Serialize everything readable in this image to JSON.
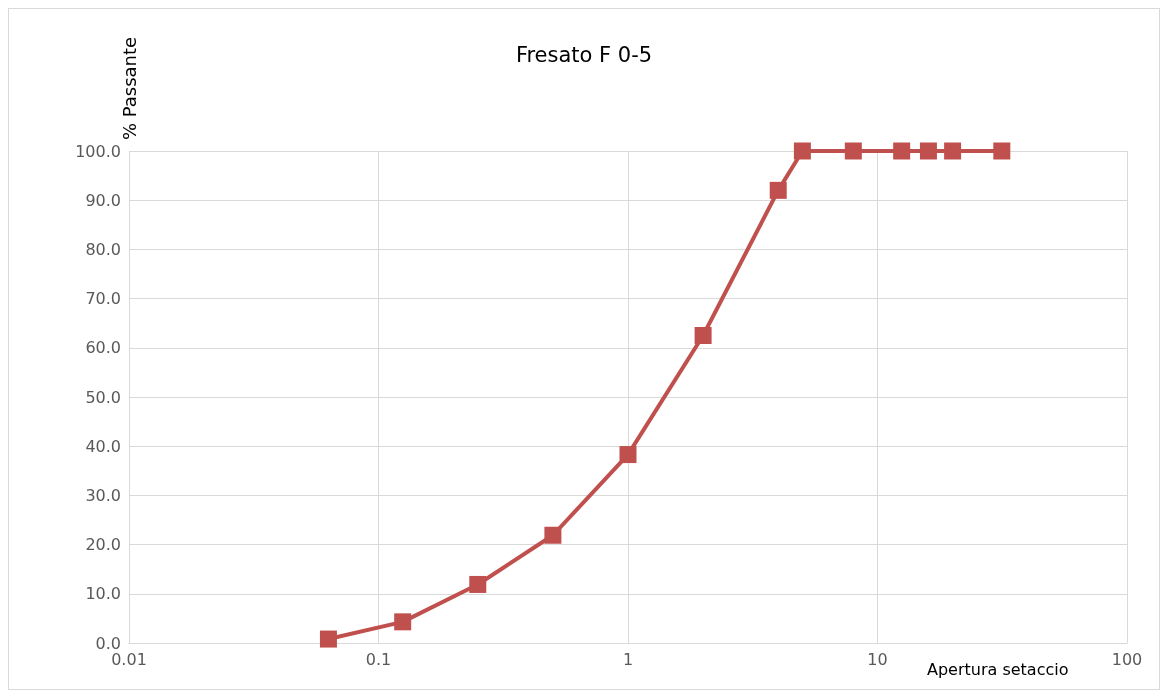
{
  "chart_data": {
    "type": "line",
    "title": "Fresato F 0-5",
    "xlabel": "Apertura setaccio",
    "ylabel": "% Passante",
    "x": [
      0.063,
      0.125,
      0.25,
      0.5,
      1,
      2,
      4,
      5,
      8,
      12.5,
      16,
      20,
      31.5
    ],
    "series": [
      {
        "color": "#c0504d",
        "values": [
          0.8,
          4.3,
          11.9,
          21.9,
          38.3,
          62.5,
          92.0,
          100,
          100,
          100,
          100,
          100,
          100
        ]
      }
    ],
    "log": "x",
    "xlim": [
      0.01,
      100
    ],
    "xticks": [
      0.01,
      0.1,
      1,
      10,
      100
    ],
    "ylim": [
      0,
      100
    ],
    "yticks": [
      {
        "value": 0,
        "label": "0.0"
      },
      {
        "value": 10,
        "label": "10.0"
      },
      {
        "value": 20,
        "label": "20.0"
      },
      {
        "value": 30,
        "label": "30.0"
      },
      {
        "value": 40,
        "label": "40.0"
      },
      {
        "value": 50,
        "label": "50.0"
      },
      {
        "value": 60,
        "label": "60.0"
      },
      {
        "value": 70,
        "label": "70.0"
      },
      {
        "value": 80,
        "label": "80.0"
      },
      {
        "value": 90,
        "label": "90.0"
      },
      {
        "value": 100,
        "label": "100.0"
      }
    ],
    "grid": true,
    "marker": "square",
    "line_style": "solid"
  }
}
